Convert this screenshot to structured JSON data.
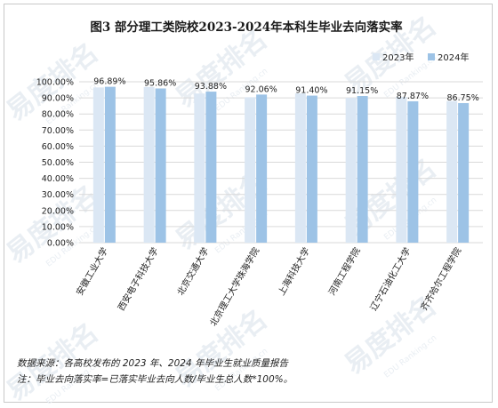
{
  "chart_data": {
    "type": "bar",
    "title": "图3 部分理工类院校2023-2024年本科生毕业去向落实率",
    "categories": [
      "安徽工业大学",
      "西安电子科技大学",
      "北京交通大学",
      "北京理工大学珠海学院",
      "上海科技大学",
      "河南工程学院",
      "辽宁石油化工大学",
      "齐齐哈尔工程学院"
    ],
    "series": [
      {
        "name": "2023年",
        "values": [
          96.5,
          96.8,
          92.7,
          90.4,
          92.8,
          90.0,
          90.6,
          88.0
        ],
        "color": "#dbe7f4"
      },
      {
        "name": "2024年",
        "values": [
          96.89,
          95.86,
          93.88,
          92.06,
          91.4,
          91.15,
          87.87,
          86.75
        ],
        "color": "#9dc3e6"
      }
    ],
    "data_labels": [
      "96.89%",
      "95.86%",
      "93.88%",
      "92.06%",
      "91.40%",
      "91.15%",
      "87.87%",
      "86.75%"
    ],
    "ylim": [
      0,
      100
    ],
    "yticks": [
      "0.00%",
      "10.00%",
      "20.00%",
      "30.00%",
      "40.00%",
      "50.00%",
      "60.00%",
      "70.00%",
      "80.00%",
      "90.00%",
      "100.00%"
    ],
    "grid": true,
    "legend_position": "top-right"
  },
  "notes": {
    "source": "数据来源：各高校发布的 2023 年、2024 年毕业生就业质量报告",
    "formula": "注：毕业去向落实率=已落实毕业去向人数/毕业生总人数*100%。"
  },
  "colors": {
    "grid": "#d9d9d9",
    "axis_text": "#222222",
    "watermark": "#e9eef3"
  },
  "watermark": {
    "text_cn": "易度排名",
    "text_en": "EDU Ranking.cn"
  }
}
